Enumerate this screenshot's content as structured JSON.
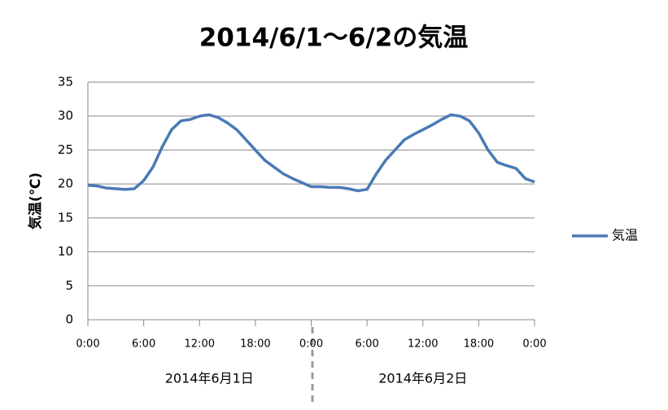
{
  "chart_data": {
    "type": "line",
    "title": "2014/6/1～6/2の気温",
    "y_label": "気温(℃)",
    "x": [
      0,
      1,
      2,
      3,
      4,
      5,
      6,
      7,
      8,
      9,
      10,
      11,
      12,
      13,
      14,
      15,
      16,
      17,
      18,
      19,
      20,
      21,
      22,
      23,
      24,
      25,
      26,
      27,
      28,
      29,
      30,
      31,
      32,
      33,
      34,
      35,
      36,
      37,
      38,
      39,
      40,
      41,
      42,
      43,
      44,
      45,
      46,
      47,
      48
    ],
    "series": [
      {
        "name": "気温",
        "color": "#4a7ab5",
        "values": [
          19.8,
          19.7,
          19.4,
          19.3,
          19.2,
          19.3,
          20.5,
          22.5,
          25.5,
          28,
          29.3,
          29.5,
          30,
          30.2,
          29.8,
          29,
          28,
          26.5,
          25,
          23.5,
          22.5,
          21.5,
          20.8,
          20.2,
          19.6,
          19.6,
          19.5,
          19.5,
          19.3,
          19,
          19.2,
          21.5,
          23.5,
          25,
          26.5,
          27.3,
          28,
          28.7,
          29.5,
          30.2,
          30,
          29.3,
          27.5,
          25,
          23.2,
          22.7,
          22.3,
          20.8,
          20.3
        ]
      }
    ],
    "xlim": [
      0,
      48
    ],
    "xticks": [
      {
        "value": 0,
        "label": "0:00"
      },
      {
        "value": 6,
        "label": "6:00"
      },
      {
        "value": 12,
        "label": "12:00"
      },
      {
        "value": 18,
        "label": "18:00"
      },
      {
        "value": 24,
        "label": "0:00"
      },
      {
        "value": 30,
        "label": "6:00"
      },
      {
        "value": 36,
        "label": "12:00"
      },
      {
        "value": 42,
        "label": "18:00"
      },
      {
        "value": 48,
        "label": "0:00"
      }
    ],
    "ylim": [
      0,
      35
    ],
    "yticks": [
      0,
      5,
      10,
      15,
      20,
      25,
      30,
      35
    ],
    "grid": true,
    "legend": "right",
    "annotations": [
      "2014年6月1日",
      "2014年6月2日"
    ]
  }
}
